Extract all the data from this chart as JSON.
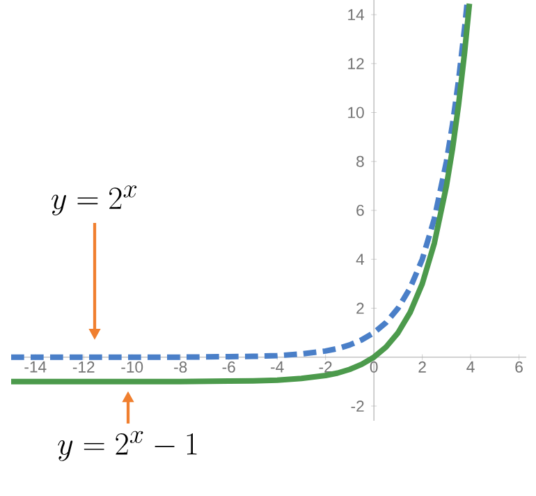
{
  "chart_data": {
    "type": "line",
    "xlim": [
      -15,
      6.3
    ],
    "ylim": [
      -2.6,
      14.6
    ],
    "xticks": [
      -14,
      -12,
      -10,
      -8,
      -6,
      -4,
      -2,
      0,
      2,
      4,
      6
    ],
    "yticks": [
      -2,
      2,
      4,
      6,
      8,
      10,
      12,
      14
    ],
    "grid": false,
    "marker": "none",
    "series": [
      {
        "color": "#4a7fc8",
        "line_style": "dashed",
        "x": [
          -15,
          -12,
          -10,
          -8,
          -6,
          -5,
          -4,
          -3,
          -2,
          -1.5,
          -1,
          -0.5,
          0,
          0.5,
          1,
          1.5,
          2,
          2.5,
          3,
          3.25,
          3.5,
          3.75,
          3.85
        ],
        "values": [
          0.0,
          0.0,
          0.0,
          0.0,
          0.02,
          0.03,
          0.06,
          0.13,
          0.25,
          0.35,
          0.5,
          0.71,
          1,
          1.41,
          2,
          2.83,
          4,
          5.66,
          8,
          9.51,
          11.31,
          13.45,
          14.42
        ]
      },
      {
        "color": "#4c9a4c",
        "line_style": "solid",
        "x": [
          -15,
          -12,
          -10,
          -8,
          -6,
          -5,
          -4,
          -3,
          -2,
          -1.5,
          -1,
          -0.5,
          0,
          0.5,
          1,
          1.5,
          2,
          2.5,
          3,
          3.25,
          3.5,
          3.75,
          3.95
        ],
        "values": [
          -1.0,
          -1.0,
          -1.0,
          -1.0,
          -0.98,
          -0.97,
          -0.94,
          -0.87,
          -0.75,
          -0.65,
          -0.5,
          -0.29,
          0,
          0.41,
          1,
          1.83,
          3,
          4.66,
          7,
          8.51,
          10.31,
          12.45,
          14.45
        ]
      }
    ],
    "annotations": [
      "y = 2^{x}",
      "y = 2^{x} - 1"
    ]
  }
}
